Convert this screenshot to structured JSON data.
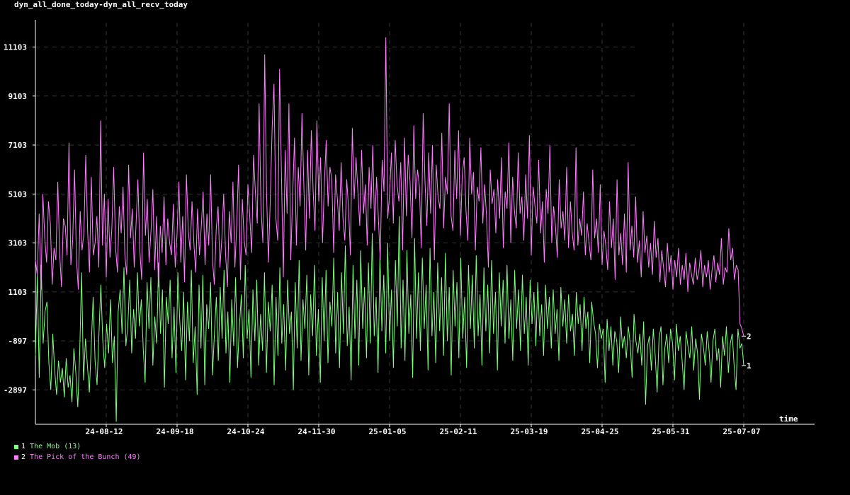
{
  "chart_data": {
    "type": "line",
    "title": "dyn_all_done_today-dyn_all_recv_today",
    "xlabel": "time",
    "ylabel": "",
    "ylim": [
      -4300,
      12100
    ],
    "y_ticks": [
      -2897,
      -897,
      1103,
      3103,
      5103,
      7103,
      9103,
      11103
    ],
    "x_tick_labels": [
      "24-08-12",
      "24-09-18",
      "24-10-24",
      "24-11-30",
      "25-01-05",
      "25-02-11",
      "25-03-19",
      "25-04-25",
      "25-05-31",
      "25-07-07"
    ],
    "grid": true,
    "legend_position": "bottom-left",
    "series": [
      {
        "index": "1",
        "name": "The Mob (13)",
        "color": "#7fff7f",
        "end_label": "1",
        "values": [
          -1500,
          1800,
          -2400,
          2200,
          -1000,
          300,
          700,
          -1800,
          -2900,
          -600,
          -2100,
          -3100,
          -1700,
          -2600,
          -2000,
          -3200,
          -1600,
          -2800,
          -2300,
          -3400,
          -1200,
          -2200,
          -3600,
          -1400,
          1900,
          -2500,
          -800,
          -1900,
          -3000,
          -1100,
          900,
          -1700,
          -2700,
          -600,
          1400,
          -900,
          -2000,
          -200,
          -1400,
          800,
          -1800,
          -700,
          -4200,
          300,
          1200,
          -600,
          2100,
          -1100,
          -300,
          1600,
          -1400,
          400,
          -800,
          1900,
          -300,
          800,
          -1200,
          -2600,
          1500,
          -400,
          1700,
          -1900,
          100,
          -1000,
          2300,
          -600,
          1200,
          -2800,
          900,
          -200,
          1600,
          -1600,
          500,
          -2200,
          1900,
          -100,
          -1300,
          1100,
          -2500,
          700,
          -900,
          2000,
          -1800,
          -300,
          -3100,
          1400,
          -1200,
          1800,
          -2700,
          600,
          -400,
          1500,
          -2300,
          -600,
          900,
          -1700,
          1300,
          -800,
          2000,
          -1400,
          300,
          -2600,
          800,
          -1100,
          1700,
          -2000,
          -300,
          1000,
          -1600,
          2200,
          -800,
          400,
          -2400,
          1200,
          -900,
          1600,
          -1900,
          200,
          -1300,
          1900,
          -2200,
          700,
          -500,
          1400,
          -2700,
          900,
          -1500,
          2100,
          -1000,
          600,
          -2100,
          1600,
          -600,
          300,
          -2900,
          1500,
          -1200,
          2400,
          -1700,
          800,
          -400,
          1800,
          -2300,
          1000,
          -700,
          2200,
          -1500,
          400,
          -2600,
          1700,
          -900,
          2000,
          -1800,
          700,
          -300,
          2500,
          -1400,
          1100,
          -2000,
          1900,
          -600,
          3000,
          -1100,
          500,
          -2500,
          2200,
          -800,
          1600,
          -1900,
          2800,
          -400,
          1300,
          -1600,
          2300,
          -1000,
          3500,
          -700,
          900,
          -2200,
          2600,
          -500,
          1800,
          -1400,
          3100,
          -900,
          1200,
          -2000,
          2400,
          -300,
          4200,
          -1200,
          1600,
          -1700,
          2800,
          -600,
          1000,
          -2400,
          3300,
          -800,
          1900,
          -1300,
          2500,
          -400,
          1400,
          -2100,
          2900,
          -700,
          1100,
          -1800,
          2300,
          -500,
          1700,
          -1500,
          2700,
          -900,
          1300,
          -2300,
          2000,
          -300,
          1500,
          -1600,
          2500,
          -800,
          900,
          -2000,
          2200,
          -400,
          1800,
          -1200,
          2600,
          -700,
          1000,
          -1900,
          2100,
          -500,
          1400,
          -1400,
          2400,
          -600,
          1100,
          -2100,
          1900,
          -300,
          1600,
          -1000,
          2200,
          -800,
          800,
          -1700,
          2000,
          -400,
          1200,
          -1300,
          1800,
          -600,
          900,
          -1900,
          1600,
          -200,
          1100,
          -1100,
          1500,
          -700,
          600,
          -1500,
          1400,
          -400,
          900,
          -1200,
          1200,
          -600,
          400,
          -1700,
          1300,
          -300,
          800,
          -1000,
          1000,
          -500,
          200,
          -1500,
          1100,
          -200,
          600,
          -1300,
          900,
          -400,
          300,
          -1800,
          700,
          -100,
          -600,
          -2000,
          -200,
          -800,
          -400,
          -2600,
          0,
          -1300,
          -300,
          -1900,
          -500,
          -900,
          -2200,
          100,
          -1200,
          -700,
          -1600,
          -300,
          -1000,
          -2400,
          200,
          -900,
          -1400,
          -600,
          -1900,
          -100,
          -3500,
          -1100,
          -700,
          -2100,
          -400,
          -1500,
          -3000,
          -800,
          -300,
          -2700,
          -1200,
          -600,
          -1800,
          -400,
          -1000,
          -2500,
          -200,
          -1300,
          -700,
          -1700,
          -2900,
          -500,
          -1100,
          -1600,
          -300,
          -2100,
          -800,
          -1400,
          -3300,
          -600,
          -1100,
          -1900,
          -500,
          -1300,
          -2600,
          -900,
          -400,
          -1700,
          -1200,
          -2800,
          -700,
          -1500,
          -300,
          -2200,
          -1000,
          -600,
          -1900,
          -2900,
          -400,
          -1200,
          -1000,
          -1900
        ]
      },
      {
        "index": "2",
        "name": "The Pick of the Bunch (49)",
        "color": "#ff7fff",
        "end_label": "2",
        "values": [
          2400,
          1800,
          4300,
          1200,
          5100,
          3300,
          2300,
          4800,
          3900,
          1400,
          2900,
          2400,
          5600,
          2700,
          1300,
          4100,
          3800,
          2600,
          7200,
          2200,
          3200,
          6100,
          2500,
          1200,
          4400,
          2800,
          3500,
          6700,
          3600,
          1900,
          5800,
          2600,
          3100,
          4200,
          2100,
          8100,
          3000,
          5100,
          1700,
          4900,
          2500,
          3700,
          6200,
          2900,
          1900,
          4600,
          3500,
          5400,
          2600,
          1800,
          6300,
          3300,
          4500,
          2100,
          3900,
          5700,
          2800,
          1600,
          6800,
          3400,
          4900,
          2300,
          3600,
          5300,
          2000,
          4200,
          1300,
          3800,
          2700,
          5000,
          2200,
          4100,
          3100,
          2600,
          4700,
          2100,
          3500,
          5600,
          2300,
          4200,
          1500,
          5900,
          3600,
          2800,
          4800,
          3100,
          1900,
          4500,
          2600,
          3800,
          5200,
          2200,
          4300,
          3000,
          5900,
          2400,
          1400,
          3700,
          4600,
          2100,
          3300,
          5100,
          2700,
          1300,
          4400,
          3100,
          5600,
          2100,
          3800,
          6300,
          1600,
          4900,
          3200,
          2600,
          5500,
          4200,
          2700,
          6700,
          5200,
          3900,
          8800,
          4600,
          3100,
          10800,
          5200,
          2300,
          4900,
          7800,
          9600,
          4100,
          3200,
          10200,
          5800,
          1700,
          6900,
          4300,
          8800,
          2400,
          5100,
          7400,
          3000,
          6200,
          4600,
          8400,
          5500,
          2800,
          6900,
          4100,
          7700,
          5200,
          3600,
          8100,
          4800,
          6600,
          3100,
          5500,
          7300,
          4600,
          6200,
          5700,
          2700,
          5900,
          4900,
          3600,
          6400,
          4100,
          3200,
          5700,
          4500,
          2600,
          7800,
          4900,
          6600,
          5200,
          3800,
          6900,
          4300,
          5500,
          3000,
          6200,
          4500,
          7100,
          3600,
          5800,
          4100,
          2400,
          6500,
          5200,
          11500,
          4100,
          5100,
          6800,
          3900,
          7300,
          5500,
          4800,
          6400,
          2800,
          7400,
          4200,
          6700,
          5600,
          3300,
          7900,
          4900,
          6100,
          5400,
          2900,
          8400,
          5600,
          3800,
          6800,
          4300,
          7100,
          2400,
          6300,
          5000,
          4500,
          7600,
          3700,
          5800,
          5100,
          8800,
          4200,
          3600,
          6900,
          4900,
          7700,
          3400,
          5900,
          6600,
          4400,
          3200,
          7400,
          5100,
          6000,
          2800,
          5400,
          4800,
          7000,
          3900,
          5500,
          4200,
          2100,
          6100,
          4700,
          5300,
          3500,
          5700,
          4100,
          6600,
          2900,
          5200,
          4500,
          7200,
          3100,
          5800,
          4400,
          3700,
          6800,
          4300,
          5000,
          3200,
          5900,
          4100,
          7500,
          2600,
          5400,
          4600,
          3900,
          6500,
          3500,
          4800,
          2300,
          5300,
          4300,
          7100,
          3100,
          4600,
          3800,
          2500,
          5700,
          3700,
          4400,
          3200,
          6200,
          2900,
          4800,
          3500,
          2800,
          7000,
          3000,
          4100,
          3400,
          5200,
          2600,
          3900,
          3100,
          2400,
          6100,
          3300,
          4100,
          2700,
          5500,
          2200,
          3600,
          3000,
          2000,
          4800,
          2900,
          4100,
          1600,
          5700,
          2600,
          3500,
          2200,
          4300,
          1900,
          6400,
          2800,
          3800,
          2500,
          5000,
          2300,
          3200,
          1700,
          4400,
          2700,
          3400,
          2100,
          3100,
          1800,
          4000,
          2500,
          3300,
          1500,
          2800,
          2100,
          1300,
          3100,
          1900,
          2600,
          1200,
          2400,
          1700,
          2900,
          1400,
          2200,
          1600,
          2700,
          1100,
          2300,
          1800,
          1400,
          2500,
          1600,
          2000,
          2800,
          1300,
          2200,
          1700,
          2400,
          1200,
          2000,
          2600,
          1500,
          2300,
          1800,
          3300,
          1400,
          2100,
          1900,
          3700,
          2400,
          2900,
          1600,
          2200,
          2000,
          -200,
          -400,
          -700
        ]
      }
    ]
  }
}
